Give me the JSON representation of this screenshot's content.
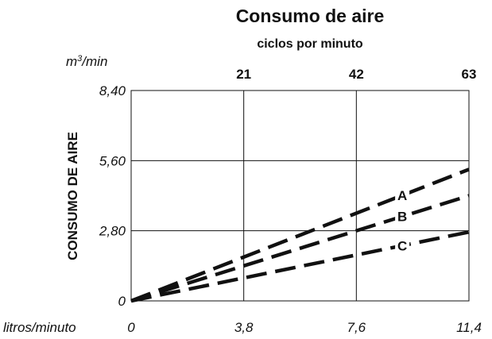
{
  "chart_data": {
    "type": "line",
    "title": "Consumo de aire",
    "subtitle": "ciclos por minuto",
    "ylabel": "CONSUMO DE AIRE",
    "y_unit": "m³/min",
    "xlabel": "litros/minuto",
    "x_ticks": [
      "0",
      "3,8",
      "7,6",
      "11,4"
    ],
    "x_values": [
      0,
      3.8,
      7.6,
      11.4
    ],
    "y_ticks": [
      "0",
      "2,80",
      "5,60",
      "8,40"
    ],
    "y_values": [
      0,
      2.8,
      5.6,
      8.4
    ],
    "top_ticks": [
      "21",
      "42",
      "63"
    ],
    "xlim": [
      0,
      11.4
    ],
    "ylim": [
      0,
      8.4
    ],
    "grid": true,
    "series": [
      {
        "name": "A",
        "x": [
          0,
          11.4
        ],
        "y": [
          0,
          5.25
        ]
      },
      {
        "name": "B",
        "x": [
          0,
          11.4
        ],
        "y": [
          0,
          4.2
        ]
      },
      {
        "name": "C",
        "x": [
          0,
          11.4
        ],
        "y": [
          0,
          2.75
        ]
      }
    ]
  }
}
